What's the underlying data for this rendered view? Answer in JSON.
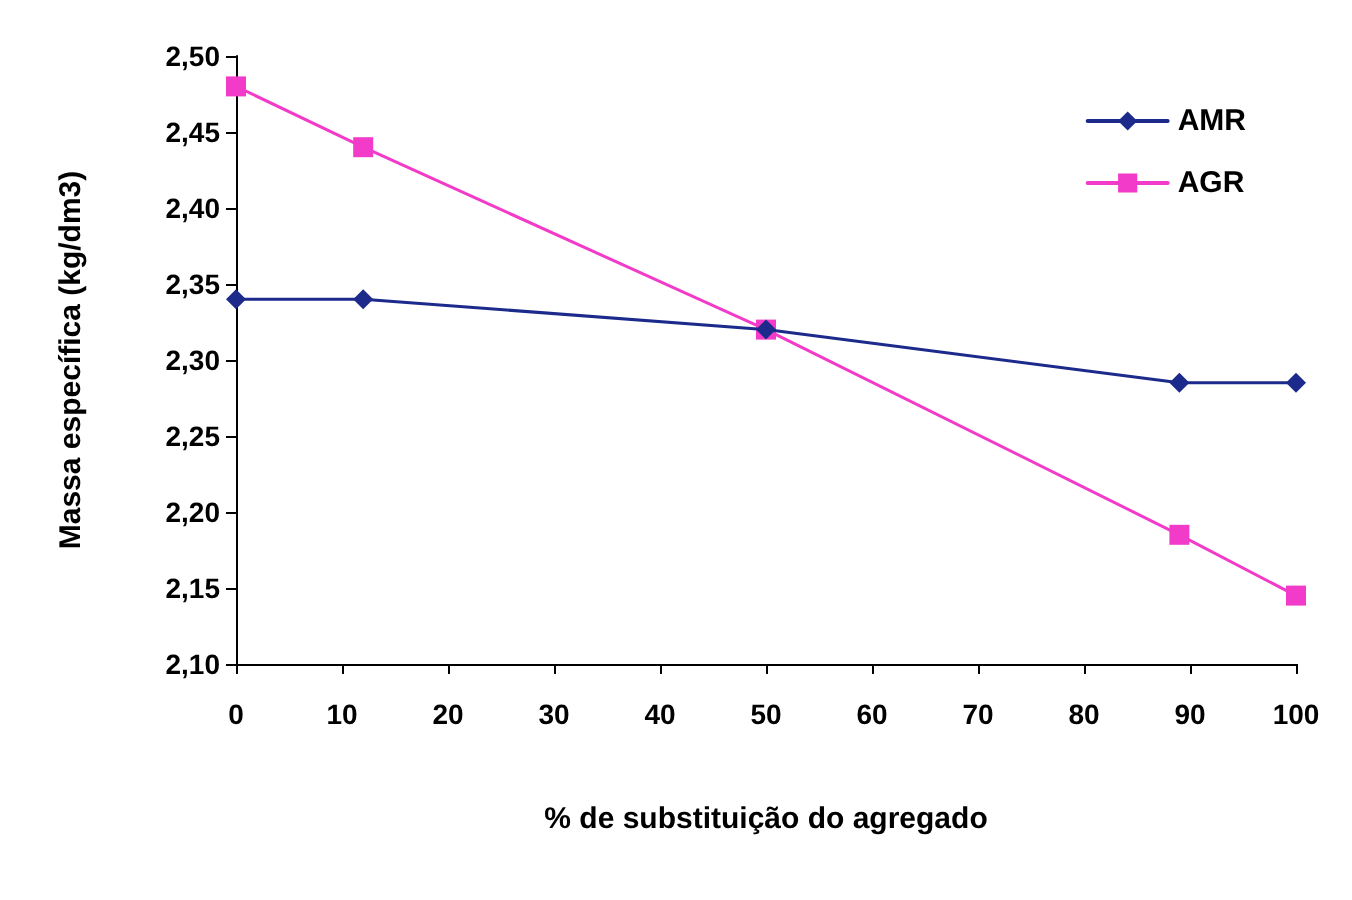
{
  "chart_data": {
    "type": "line",
    "xlabel": "% de substituição do agregado",
    "ylabel": "Massa específica (kg/dm3)",
    "xlim": [
      0,
      100
    ],
    "xticks": [
      0,
      10,
      20,
      30,
      40,
      50,
      60,
      70,
      80,
      90,
      100
    ],
    "ylim": [
      2.1,
      2.5
    ],
    "yticks": [
      {
        "value": 2.1,
        "label": "2,10"
      },
      {
        "value": 2.15,
        "label": "2,15"
      },
      {
        "value": 2.2,
        "label": "2,20"
      },
      {
        "value": 2.25,
        "label": "2,25"
      },
      {
        "value": 2.3,
        "label": "2,30"
      },
      {
        "value": 2.35,
        "label": "2,35"
      },
      {
        "value": 2.4,
        "label": "2,40"
      },
      {
        "value": 2.45,
        "label": "2,45"
      },
      {
        "value": 2.5,
        "label": "2,50"
      }
    ],
    "x": [
      0,
      12,
      50,
      89,
      100
    ],
    "series": [
      {
        "name": "AMR",
        "color": "#1c2a8c",
        "marker": "diamond",
        "values": [
          2.34,
          2.34,
          2.32,
          2.285,
          2.285
        ]
      },
      {
        "name": "AGR",
        "color": "#f23bc8",
        "marker": "square",
        "values": [
          2.48,
          2.44,
          2.32,
          2.185,
          2.145
        ]
      }
    ],
    "legend": "top right",
    "grid": false,
    "line_style": "solid"
  }
}
